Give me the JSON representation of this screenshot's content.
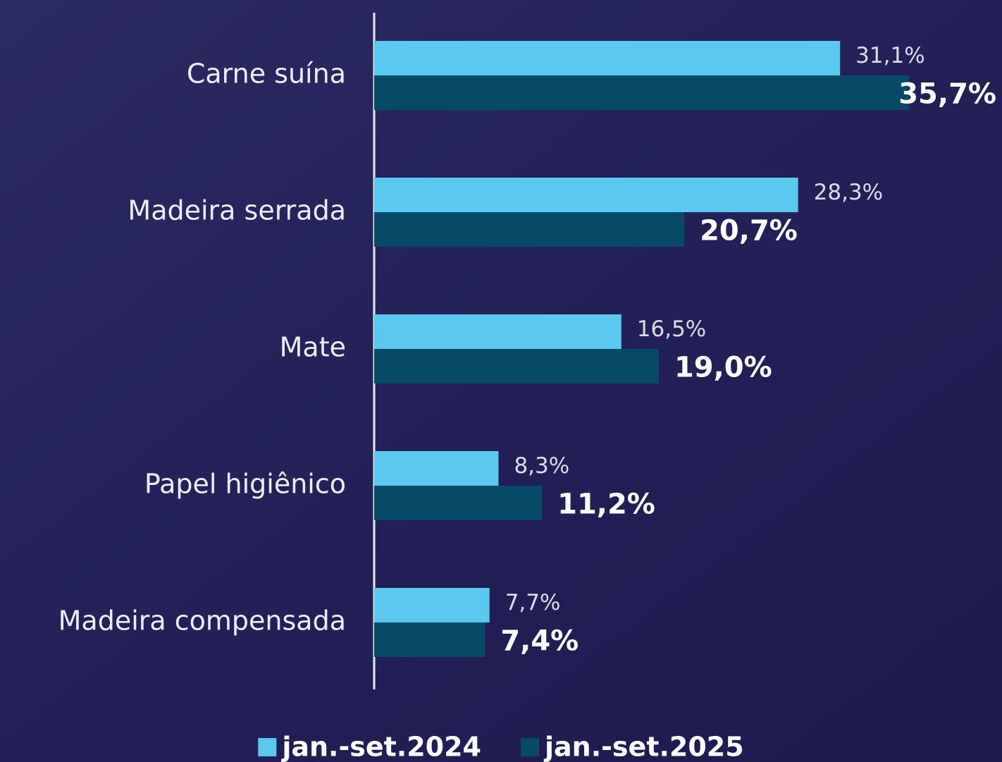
{
  "chart_data": {
    "type": "hbar",
    "categories": [
      "Carne suína",
      "Madeira serrada",
      "Mate",
      "Papel higiênico",
      "Madeira compensada"
    ],
    "series": [
      {
        "name": "jan.-set.2024",
        "color": "#5bc8f0",
        "values": [
          31.1,
          28.3,
          16.5,
          8.3,
          7.7
        ],
        "value_labels": [
          "31,1%",
          "28,3%",
          "16,5%",
          "8,3%",
          "7,7%"
        ]
      },
      {
        "name": "jan.-set.2025",
        "color": "#074a68",
        "values": [
          35.7,
          20.7,
          19.0,
          11.2,
          7.4
        ],
        "value_labels": [
          "35,7%",
          "20,7%",
          "19,0%",
          "11,2%",
          "7,4%"
        ]
      }
    ],
    "legend": "bottom"
  }
}
